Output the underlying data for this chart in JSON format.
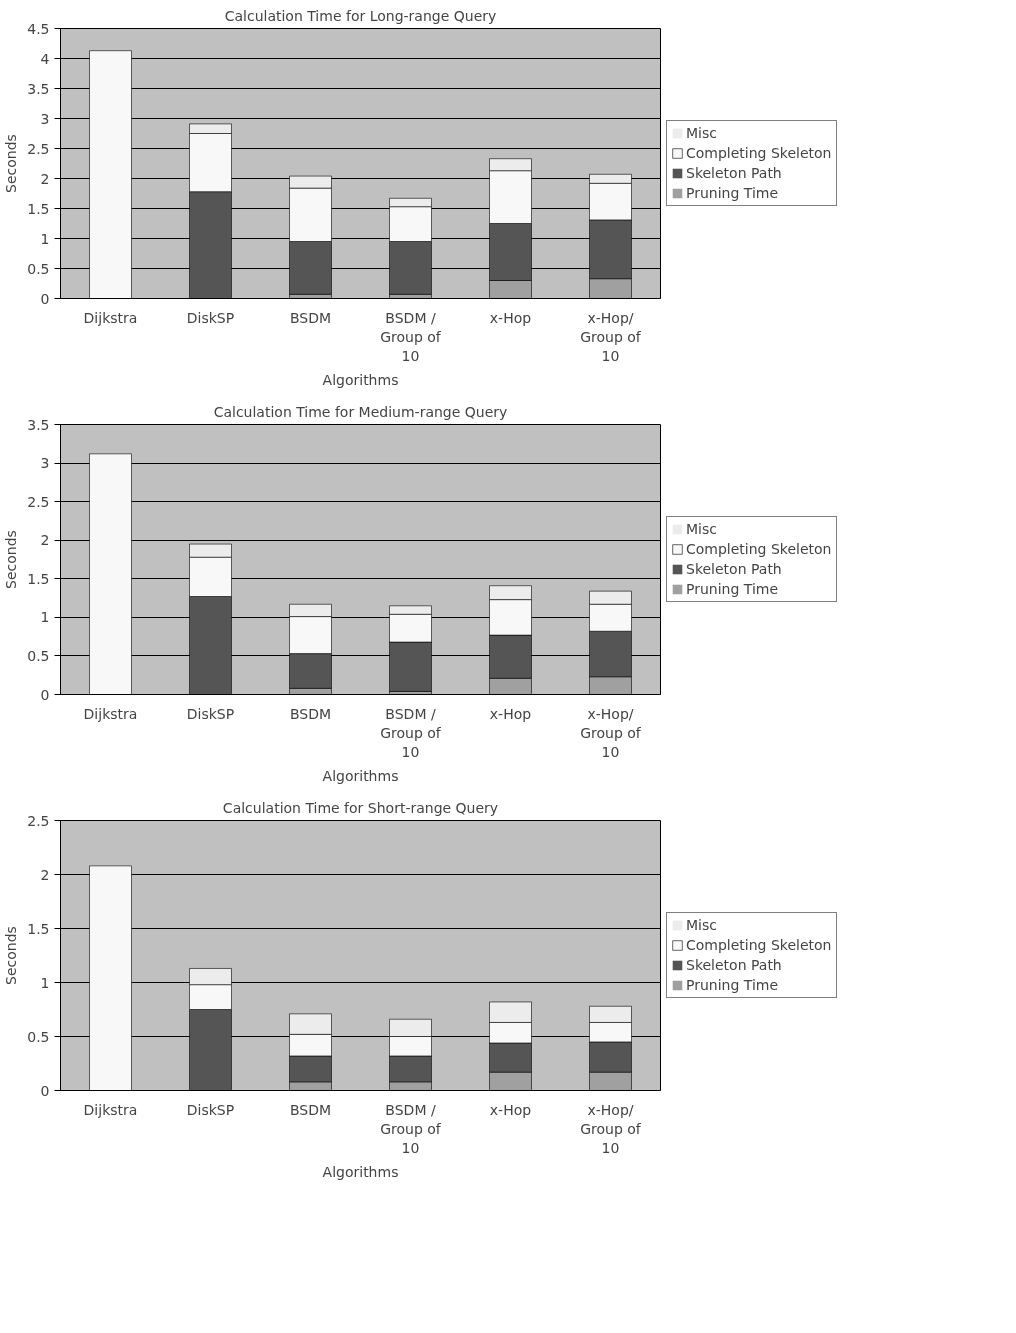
{
  "chart_data": [
    {
      "type": "bar",
      "stacked": true,
      "title": "Calculation Time for Long-range Query",
      "xlabel": "Algorithms",
      "ylabel": "Seconds",
      "categories": [
        "Dijkstra",
        "DiskSP",
        "BSDM",
        "BSDM / Group of 10",
        "x-Hop",
        "x-Hop/ Group of 10"
      ],
      "series": [
        {
          "name": "Pruning Time",
          "color": "#a0a0a0",
          "values": [
            0,
            0,
            0.07,
            0.07,
            0.3,
            0.33
          ]
        },
        {
          "name": "Skeleton Path",
          "color": "#555555",
          "values": [
            0,
            1.78,
            0.88,
            0.88,
            0.95,
            0.98
          ]
        },
        {
          "name": "Completing Skeleton",
          "color": "#f8f8f8",
          "values": [
            4.13,
            0.97,
            0.89,
            0.58,
            0.88,
            0.61
          ]
        },
        {
          "name": "Misc",
          "color": "#ececec",
          "values": [
            0,
            0.16,
            0.2,
            0.14,
            0.2,
            0.15
          ]
        }
      ],
      "ylim": [
        0,
        4.5
      ],
      "yticks": [
        0,
        0.5,
        1,
        1.5,
        2,
        2.5,
        3,
        3.5,
        4,
        4.5
      ],
      "grid": "y",
      "legend": "right"
    },
    {
      "type": "bar",
      "stacked": true,
      "title": "Calculation Time for Medium-range Query",
      "xlabel": "Algorithms",
      "ylabel": "Seconds",
      "categories": [
        "Dijkstra",
        "DiskSP",
        "BSDM",
        "BSDM / Group of 10",
        "x-Hop",
        "x-Hop/ Group of 10"
      ],
      "series": [
        {
          "name": "Pruning Time",
          "color": "#a0a0a0",
          "values": [
            0,
            0,
            0.08,
            0.04,
            0.21,
            0.23
          ]
        },
        {
          "name": "Skeleton Path",
          "color": "#555555",
          "values": [
            0,
            1.27,
            0.45,
            0.64,
            0.56,
            0.59
          ]
        },
        {
          "name": "Completing Skeleton",
          "color": "#f8f8f8",
          "values": [
            3.12,
            0.51,
            0.48,
            0.36,
            0.46,
            0.35
          ]
        },
        {
          "name": "Misc",
          "color": "#ececec",
          "values": [
            0,
            0.17,
            0.16,
            0.11,
            0.18,
            0.17
          ]
        }
      ],
      "ylim": [
        0,
        3.5
      ],
      "yticks": [
        0,
        0.5,
        1,
        1.5,
        2,
        2.5,
        3,
        3.5
      ],
      "grid": "y",
      "legend": "right"
    },
    {
      "type": "bar",
      "stacked": true,
      "title": "Calculation Time for Short-range Query",
      "xlabel": "Algorithms",
      "ylabel": "Seconds",
      "categories": [
        "Dijkstra",
        "DiskSP",
        "BSDM",
        "BSDM / Group of 10",
        "x-Hop",
        "x-Hop/ Group of 10"
      ],
      "series": [
        {
          "name": "Pruning Time",
          "color": "#a0a0a0",
          "values": [
            0,
            0,
            0.08,
            0.08,
            0.17,
            0.17
          ]
        },
        {
          "name": "Skeleton Path",
          "color": "#555555",
          "values": [
            0,
            0.75,
            0.24,
            0.24,
            0.27,
            0.28
          ]
        },
        {
          "name": "Completing Skeleton",
          "color": "#f8f8f8",
          "values": [
            2.08,
            0.23,
            0.2,
            0.18,
            0.19,
            0.18
          ]
        },
        {
          "name": "Misc",
          "color": "#ececec",
          "values": [
            0,
            0.15,
            0.19,
            0.16,
            0.19,
            0.15
          ]
        }
      ],
      "ylim": [
        0,
        2.5
      ],
      "yticks": [
        0,
        0.5,
        1,
        1.5,
        2,
        2.5
      ],
      "grid": "y",
      "legend": "right"
    }
  ]
}
